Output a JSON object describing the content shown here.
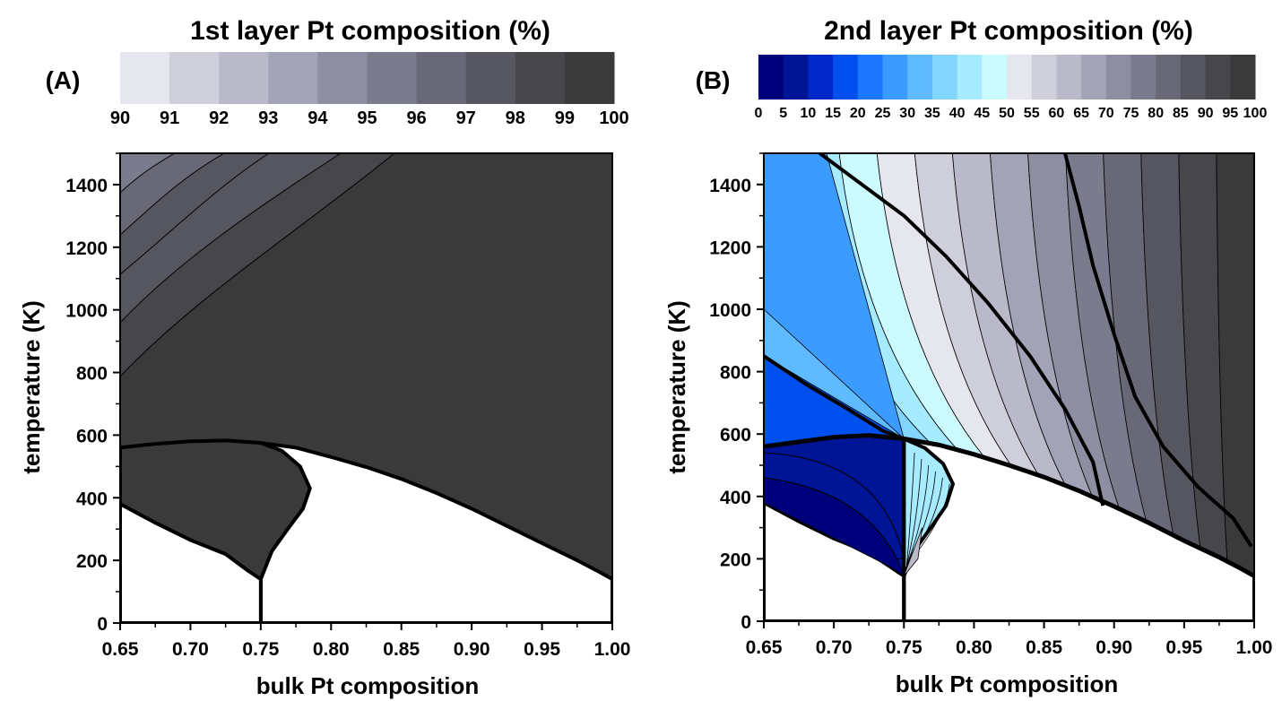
{
  "chart_data": [
    {
      "type": "heatmap",
      "panel_label": "(A)",
      "title": "1st layer Pt composition (%)",
      "colorbar": {
        "ticks": [
          "90",
          "91",
          "92",
          "93",
          "94",
          "95",
          "96",
          "97",
          "98",
          "99",
          "100"
        ],
        "levels": [
          90,
          91,
          92,
          93,
          94,
          95,
          96,
          97,
          98,
          99,
          100
        ],
        "colors": [
          "#e6e6ee",
          "#cfcfdb",
          "#b9b9ca",
          "#a3a3b7",
          "#8e8ea3",
          "#7b7b8e",
          "#686877",
          "#565660",
          "#46464b",
          "#3a3a3a"
        ]
      },
      "xlabel": "bulk Pt composition",
      "ylabel": "temperature (K)",
      "x_ticks": [
        "0.65",
        "0.70",
        "0.75",
        "0.80",
        "0.85",
        "0.90",
        "0.95",
        "1.00"
      ],
      "y_ticks": [
        "0",
        "200",
        "400",
        "600",
        "800",
        "1000",
        "1200",
        "1400"
      ],
      "xlim": [
        0.65,
        1.0
      ],
      "ylim": [
        0,
        1500
      ],
      "boundaries": {
        "order_disorder": [
          [
            0.65,
            560
          ],
          [
            0.675,
            572
          ],
          [
            0.7,
            580
          ],
          [
            0.725,
            583
          ],
          [
            0.75,
            575
          ],
          [
            0.775,
            560
          ],
          [
            0.8,
            530
          ],
          [
            0.825,
            498
          ],
          [
            0.85,
            460
          ],
          [
            0.875,
            415
          ],
          [
            0.9,
            365
          ],
          [
            0.925,
            310
          ],
          [
            0.95,
            255
          ],
          [
            0.975,
            200
          ],
          [
            0.99,
            165
          ],
          [
            1.0,
            140
          ]
        ],
        "lower_left": [
          [
            0.65,
            380
          ],
          [
            0.675,
            320
          ],
          [
            0.7,
            265
          ],
          [
            0.725,
            220
          ],
          [
            0.74,
            170
          ],
          [
            0.75,
            140
          ]
        ],
        "lower_right": [
          [
            1.0,
            140
          ],
          [
            1.0,
            0
          ]
        ],
        "bulb": [
          [
            0.75,
            140
          ],
          [
            0.758,
            230
          ],
          [
            0.77,
            305
          ],
          [
            0.78,
            365
          ],
          [
            0.785,
            430
          ],
          [
            0.778,
            500
          ],
          [
            0.765,
            550
          ],
          [
            0.75,
            575
          ]
        ]
      }
    },
    {
      "type": "heatmap",
      "panel_label": "(B)",
      "title": "2nd layer Pt composition (%)",
      "colorbar": {
        "ticks": [
          "0",
          "5",
          "10",
          "15",
          "20",
          "25",
          "30",
          "35",
          "40",
          "45",
          "50",
          "55",
          "60",
          "65",
          "70",
          "75",
          "80",
          "85",
          "90",
          "95",
          "100"
        ],
        "levels": [
          0,
          5,
          10,
          15,
          20,
          25,
          30,
          35,
          40,
          45,
          50,
          55,
          60,
          65,
          70,
          75,
          80,
          85,
          90,
          95,
          100
        ],
        "colors": [
          "#00007a",
          "#001496",
          "#0028c8",
          "#0050f0",
          "#1e78ff",
          "#3c9bff",
          "#5fbaff",
          "#82d5ff",
          "#a6ebff",
          "#ccfbff",
          "#e6e6ee",
          "#cfcfdb",
          "#b9b9ca",
          "#a3a3b7",
          "#8e8ea3",
          "#7b7b8e",
          "#686877",
          "#565660",
          "#46464b",
          "#3a3a3a"
        ]
      },
      "xlabel": "bulk Pt composition",
      "ylabel": "temperature (K)",
      "x_ticks": [
        "0.65",
        "0.70",
        "0.75",
        "0.80",
        "0.85",
        "0.90",
        "0.95",
        "1.00"
      ],
      "y_ticks": [
        "0",
        "200",
        "400",
        "600",
        "800",
        "1000",
        "1200",
        "1400"
      ],
      "xlim": [
        0.65,
        1.0
      ],
      "ylim": [
        0,
        1500
      ],
      "boundaries": {
        "order_disorder": [
          [
            0.65,
            560
          ],
          [
            0.675,
            575
          ],
          [
            0.7,
            590
          ],
          [
            0.725,
            596
          ],
          [
            0.75,
            585
          ],
          [
            0.775,
            565
          ],
          [
            0.8,
            535
          ],
          [
            0.825,
            500
          ],
          [
            0.85,
            462
          ],
          [
            0.875,
            418
          ],
          [
            0.9,
            368
          ],
          [
            0.925,
            315
          ],
          [
            0.95,
            258
          ],
          [
            0.975,
            205
          ],
          [
            0.99,
            170
          ],
          [
            1.0,
            145
          ]
        ],
        "lower_left": [
          [
            0.65,
            380
          ],
          [
            0.675,
            320
          ],
          [
            0.7,
            265
          ],
          [
            0.725,
            220
          ],
          [
            0.74,
            175
          ],
          [
            0.75,
            145
          ]
        ],
        "lower_right": [
          [
            1.0,
            145
          ],
          [
            1.0,
            0
          ]
        ],
        "bulb": [
          [
            0.75,
            145
          ],
          [
            0.758,
            230
          ],
          [
            0.77,
            305
          ],
          [
            0.78,
            370
          ],
          [
            0.785,
            440
          ],
          [
            0.778,
            505
          ],
          [
            0.765,
            555
          ],
          [
            0.75,
            585
          ]
        ],
        "contour_50": [
          [
            0.69,
            1500
          ],
          [
            0.72,
            1400
          ],
          [
            0.75,
            1300
          ],
          [
            0.78,
            1170
          ],
          [
            0.81,
            1020
          ],
          [
            0.84,
            850
          ],
          [
            0.865,
            680
          ],
          [
            0.885,
            510
          ],
          [
            0.892,
            370
          ]
        ],
        "contour_80": [
          [
            0.865,
            1500
          ],
          [
            0.875,
            1330
          ],
          [
            0.885,
            1140
          ],
          [
            0.9,
            920
          ],
          [
            0.915,
            720
          ],
          [
            0.935,
            560
          ],
          [
            0.96,
            430
          ],
          [
            0.985,
            330
          ],
          [
            0.998,
            240
          ]
        ],
        "contour_20": [
          [
            0.65,
            850
          ],
          [
            0.68,
            760
          ],
          [
            0.71,
            680
          ],
          [
            0.735,
            610
          ],
          [
            0.75,
            585
          ]
        ]
      }
    }
  ]
}
